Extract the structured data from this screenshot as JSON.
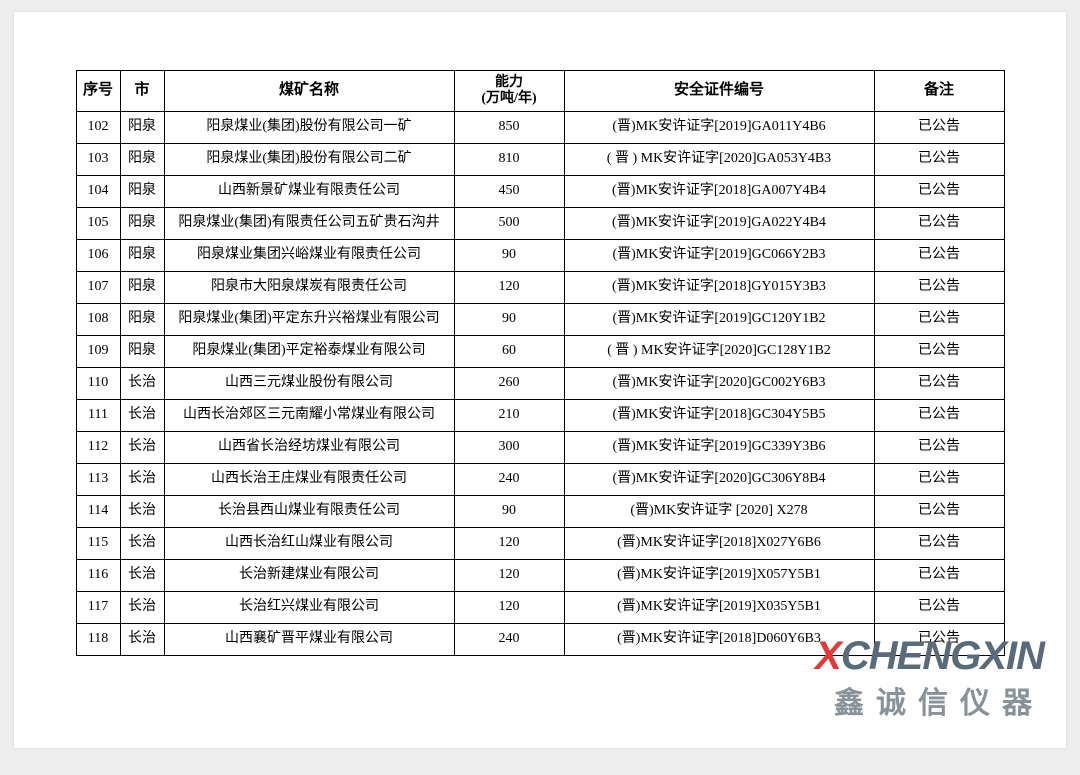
{
  "columns": {
    "seq": "序号",
    "city": "市",
    "name": "煤矿名称",
    "capacity_line1": "能力",
    "capacity_line2": "(万吨/年)",
    "cert": "安全证件编号",
    "note": "备注"
  },
  "rows": [
    {
      "seq": "102",
      "city": "阳泉",
      "name": "阳泉煤业(集团)股份有限公司一矿",
      "cap": "850",
      "cert": "(晋)MK安许证字[2019]GA011Y4B6",
      "note": "已公告"
    },
    {
      "seq": "103",
      "city": "阳泉",
      "name": "阳泉煤业(集团)股份有限公司二矿",
      "cap": "810",
      "cert": "( 晋 ) MK安许证字[2020]GA053Y4B3",
      "note": "已公告"
    },
    {
      "seq": "104",
      "city": "阳泉",
      "name": "山西新景矿煤业有限责任公司",
      "cap": "450",
      "cert": "(晋)MK安许证字[2018]GA007Y4B4",
      "note": "已公告"
    },
    {
      "seq": "105",
      "city": "阳泉",
      "name": "阳泉煤业(集团)有限责任公司五矿贵石沟井",
      "cap": "500",
      "cert": "(晋)MK安许证字[2019]GA022Y4B4",
      "note": "已公告"
    },
    {
      "seq": "106",
      "city": "阳泉",
      "name": "阳泉煤业集团兴峪煤业有限责任公司",
      "cap": "90",
      "cert": "(晋)MK安许证字[2019]GC066Y2B3",
      "note": "已公告"
    },
    {
      "seq": "107",
      "city": "阳泉",
      "name": "阳泉市大阳泉煤炭有限责任公司",
      "cap": "120",
      "cert": "(晋)MK安许证字[2018]GY015Y3B3",
      "note": "已公告"
    },
    {
      "seq": "108",
      "city": "阳泉",
      "name": "阳泉煤业(集团)平定东升兴裕煤业有限公司",
      "cap": "90",
      "cert": "(晋)MK安许证字[2019]GC120Y1B2",
      "note": "已公告"
    },
    {
      "seq": "109",
      "city": "阳泉",
      "name": "阳泉煤业(集团)平定裕泰煤业有限公司",
      "cap": "60",
      "cert": "( 晋 ) MK安许证字[2020]GC128Y1B2",
      "note": "已公告"
    },
    {
      "seq": "110",
      "city": "长治",
      "name": "山西三元煤业股份有限公司",
      "cap": "260",
      "cert": "(晋)MK安许证字[2020]GC002Y6B3",
      "note": "已公告"
    },
    {
      "seq": "111",
      "city": "长治",
      "name": "山西长治郊区三元南耀小常煤业有限公司",
      "cap": "210",
      "cert": "(晋)MK安许证字[2018]GC304Y5B5",
      "note": "已公告"
    },
    {
      "seq": "112",
      "city": "长治",
      "name": "山西省长治经坊煤业有限公司",
      "cap": "300",
      "cert": "(晋)MK安许证字[2019]GC339Y3B6",
      "note": "已公告"
    },
    {
      "seq": "113",
      "city": "长治",
      "name": "山西长治王庄煤业有限责任公司",
      "cap": "240",
      "cert": "(晋)MK安许证字[2020]GC306Y8B4",
      "note": "已公告"
    },
    {
      "seq": "114",
      "city": "长治",
      "name": "长治县西山煤业有限责任公司",
      "cap": "90",
      "cert": "(晋)MK安许证字 [2020] X278",
      "note": "已公告"
    },
    {
      "seq": "115",
      "city": "长治",
      "name": "山西长治红山煤业有限公司",
      "cap": "120",
      "cert": "(晋)MK安许证字[2018]X027Y6B6",
      "note": "已公告"
    },
    {
      "seq": "116",
      "city": "长治",
      "name": "长治新建煤业有限公司",
      "cap": "120",
      "cert": "(晋)MK安许证字[2019]X057Y5B1",
      "note": "已公告"
    },
    {
      "seq": "117",
      "city": "长治",
      "name": "长治红兴煤业有限公司",
      "cap": "120",
      "cert": "(晋)MK安许证字[2019]X035Y5B1",
      "note": "已公告"
    },
    {
      "seq": "118",
      "city": "长治",
      "name": "山西襄矿晋平煤业有限公司",
      "cap": "240",
      "cert": "(晋)MK安许证字[2018]D060Y6B3",
      "note": "已公告"
    }
  ],
  "watermark": {
    "top_x": "X",
    "top_rest": "CHENGXIN",
    "bottom": "鑫诚信仪器"
  }
}
